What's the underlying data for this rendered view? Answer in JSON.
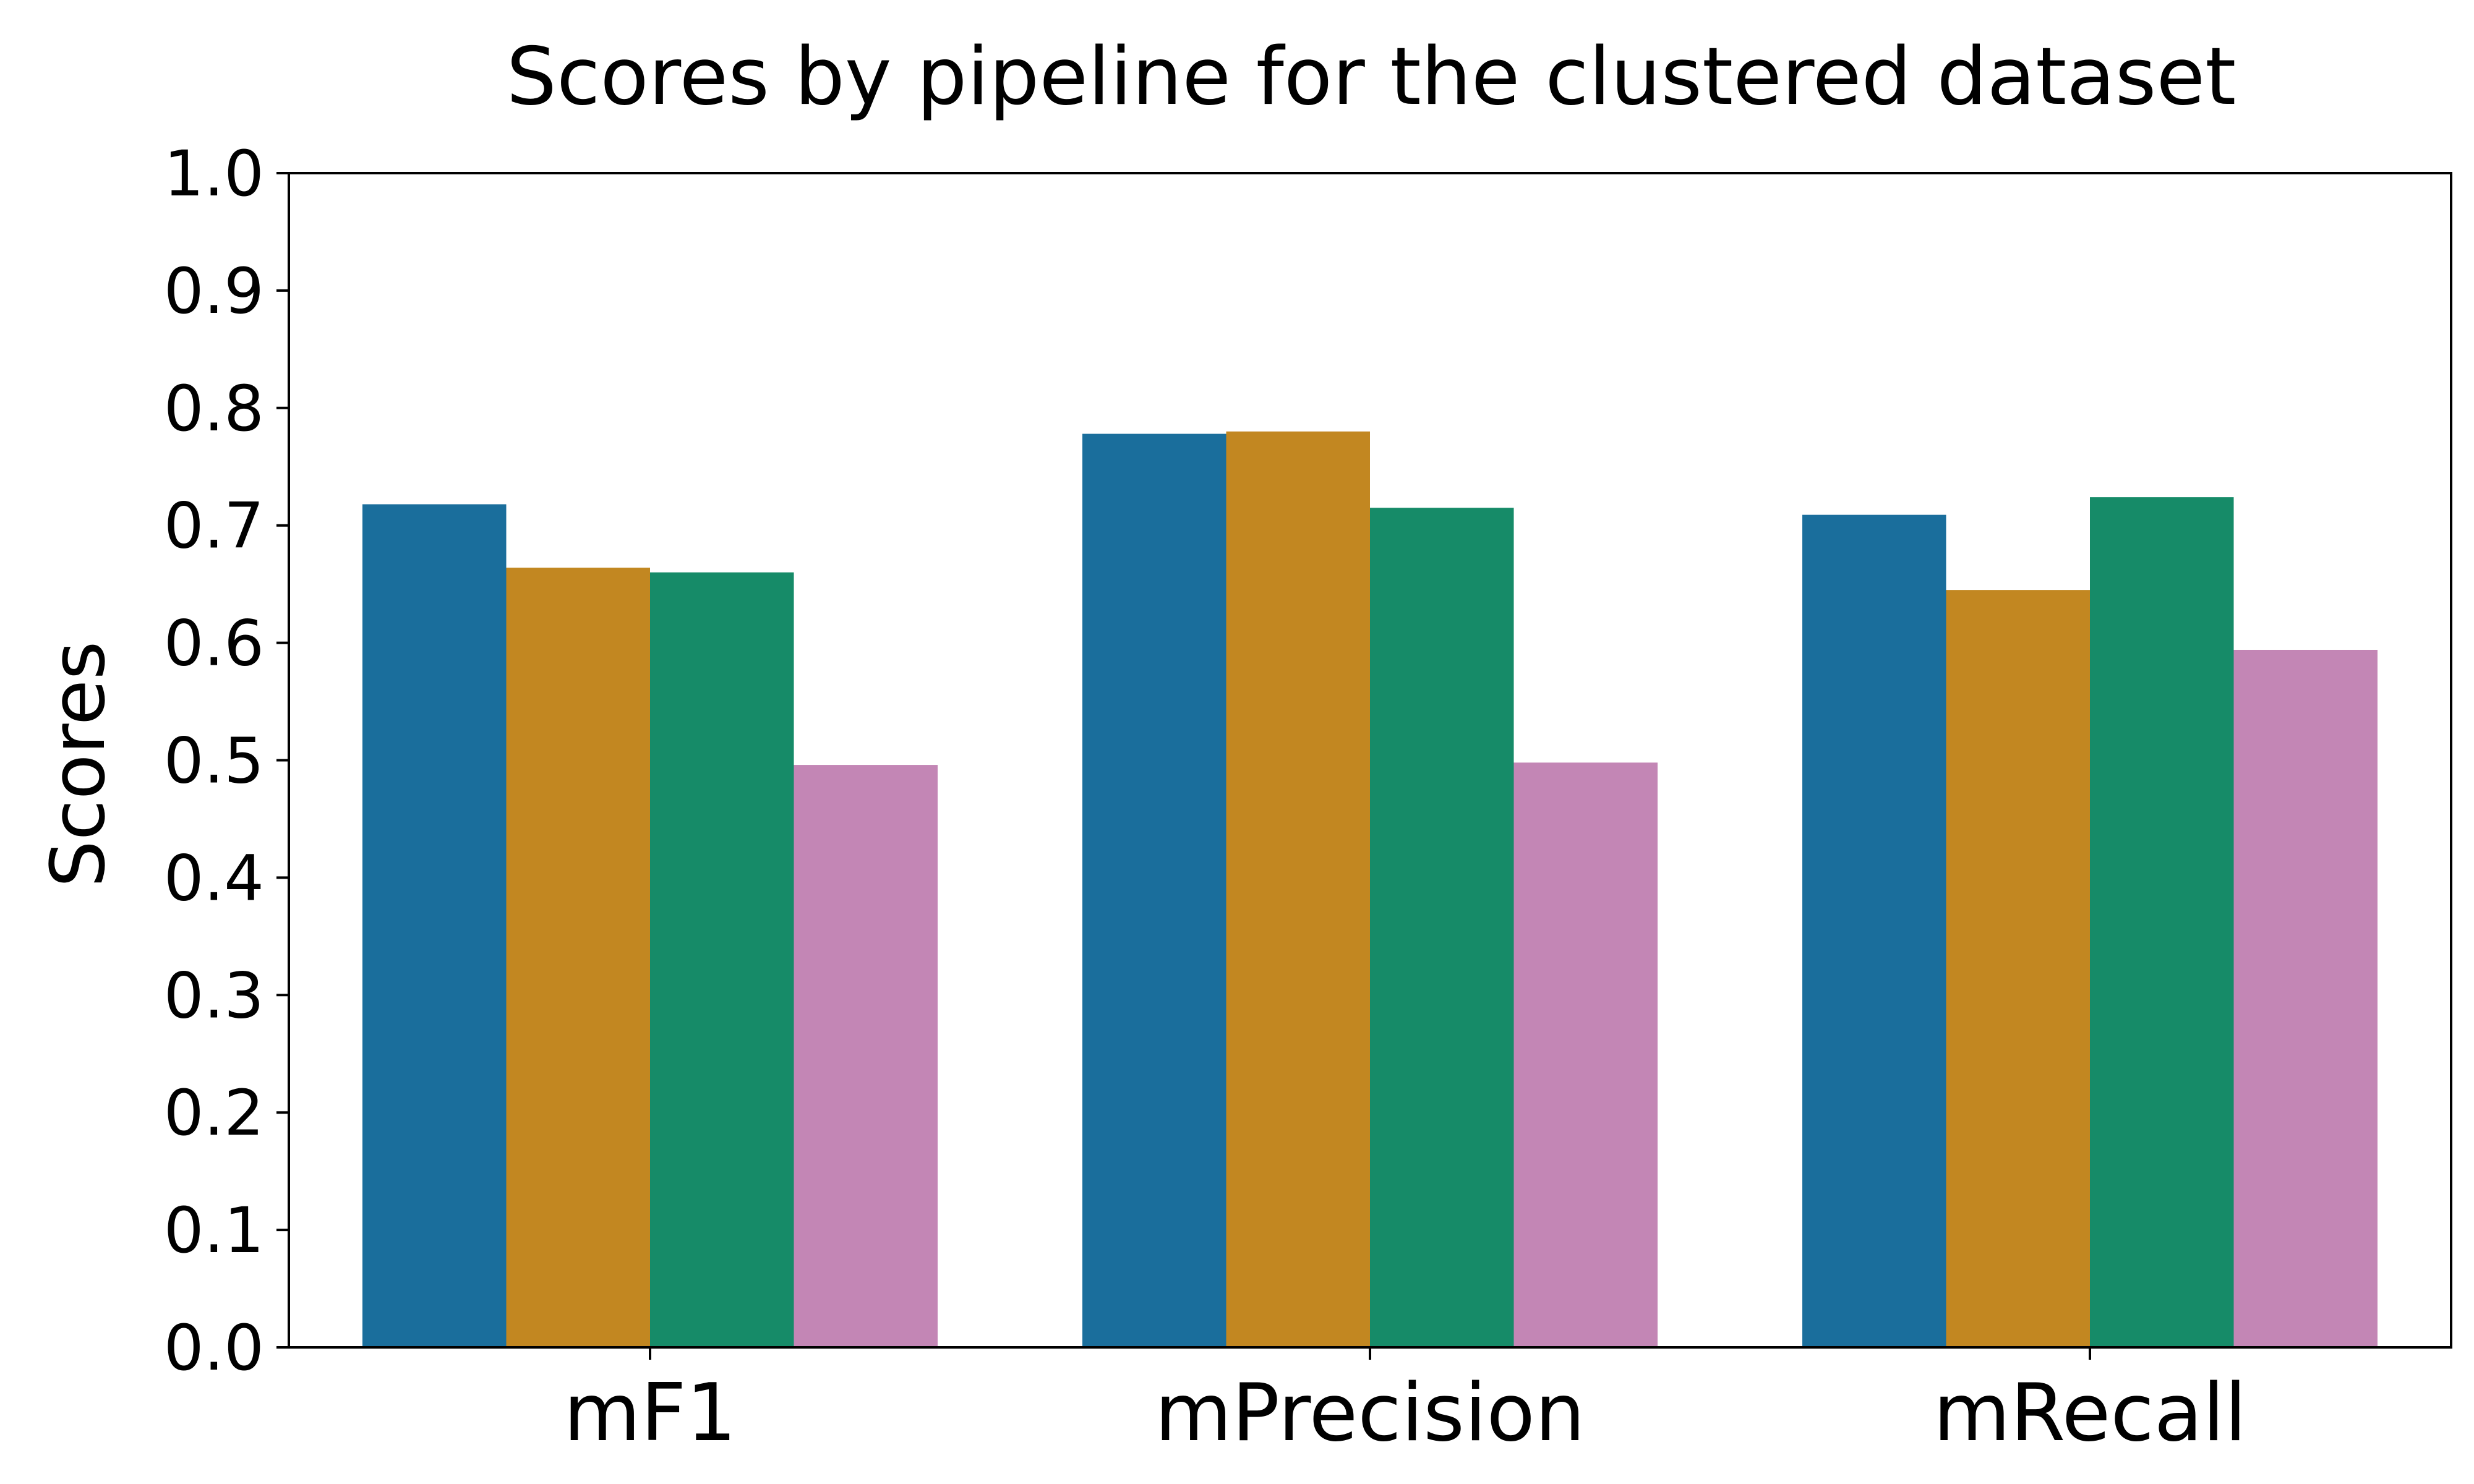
{
  "chart_data": {
    "type": "bar",
    "title": "Scores by pipeline for the clustered dataset",
    "xlabel": "",
    "ylabel": "Scores",
    "ylim": [
      0,
      1.0
    ],
    "yticks": [
      "0.0",
      "0.1",
      "0.2",
      "0.3",
      "0.4",
      "0.5",
      "0.6",
      "0.7",
      "0.8",
      "0.9",
      "1.0"
    ],
    "categories": [
      "mF1",
      "mPrecision",
      "mRecall"
    ],
    "grid": false,
    "legend": "none",
    "series": [
      {
        "color": "#1a6e9c",
        "values": [
          0.718,
          0.778,
          0.709
        ]
      },
      {
        "color": "#c28721",
        "values": [
          0.664,
          0.78,
          0.645
        ]
      },
      {
        "color": "#168b68",
        "values": [
          0.66,
          0.715,
          0.724
        ]
      },
      {
        "color": "#c386b5",
        "values": [
          0.496,
          0.498,
          0.594
        ]
      }
    ]
  }
}
